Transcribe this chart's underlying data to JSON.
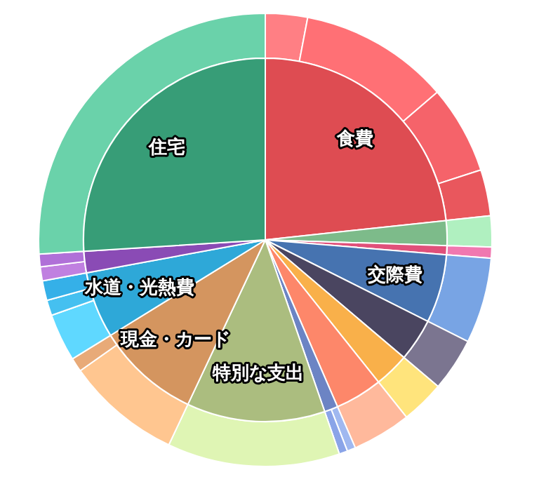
{
  "chart_data": [
    {
      "type": "pie",
      "categories": [
        "食費",
        null,
        null,
        "交際費",
        null,
        null,
        null,
        null,
        "特別な支出",
        "現金・カード",
        "水道・光熱費",
        null,
        "住宅"
      ],
      "values": [
        23.3,
        2.2,
        0.8,
        6.1,
        3.8,
        3.1,
        4.2,
        1.2,
        12.3,
        9.2,
        5.9,
        1.9,
        26.0
      ],
      "colors": [
        "#de4c52",
        "#7dbb8a",
        "#e0507a",
        "#4673b0",
        "#4a4560",
        "#f9b04a",
        "#fd876a",
        "#6c84c4",
        "#abbd7f",
        "#d4955f",
        "#2ea8d8",
        "#8a4bb5",
        "#379d77"
      ]
    },
    {
      "type": "donut",
      "categories": [
        null,
        null,
        null,
        null,
        null,
        null,
        null,
        null,
        null,
        null,
        null,
        null,
        null,
        null,
        null,
        null,
        null,
        null,
        null,
        null,
        null
      ],
      "values": [
        3.0,
        10.7,
        6.3,
        3.3,
        2.2,
        0.8,
        6.1,
        3.8,
        3.1,
        4.2,
        0.6,
        0.6,
        12.3,
        8.2,
        1.0,
        3.4,
        1.1,
        1.4,
        1.0,
        0.9,
        26.0
      ],
      "colors": [
        "#ff7f84",
        "#ff7075",
        "#f5636a",
        "#e9575d",
        "#b0f0c0",
        "#f078b0",
        "#78a4e4",
        "#7b7590",
        "#ffe47c",
        "#ffb99c",
        "#a0b8f0",
        "#8aa4e8",
        "#dff5b4",
        "#ffc690",
        "#e8aa78",
        "#5fd8ff",
        "#45c0f0",
        "#35b0e8",
        "#c080e0",
        "#b070d8",
        "#6ad2aa"
      ]
    }
  ]
}
